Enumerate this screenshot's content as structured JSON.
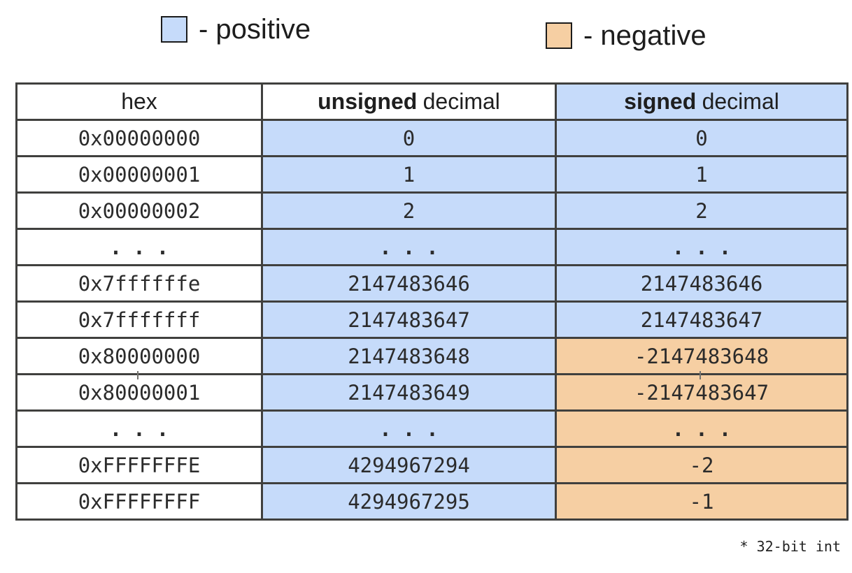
{
  "legend": {
    "positive": {
      "label": "- positive",
      "color": "#c6dbfa"
    },
    "negative": {
      "label": "- negative",
      "color": "#f6cfa3"
    }
  },
  "table": {
    "columns": {
      "hex": "hex",
      "unsigned": {
        "bold": "unsigned",
        "rest": "decimal"
      },
      "signed": {
        "bold": "signed",
        "rest": "decimal"
      }
    },
    "rows": [
      {
        "hex": "0x00000000",
        "unsigned": "0",
        "signed": "0",
        "signed_negative": false
      },
      {
        "hex": "0x00000001",
        "unsigned": "1",
        "signed": "1",
        "signed_negative": false
      },
      {
        "hex": "0x00000002",
        "unsigned": "2",
        "signed": "2",
        "signed_negative": false
      },
      {
        "hex": "...",
        "unsigned": "...",
        "signed": "...",
        "signed_negative": false
      },
      {
        "hex": "0x7ffffffe",
        "unsigned": "2147483646",
        "signed": "2147483646",
        "signed_negative": false
      },
      {
        "hex": "0x7fffffff",
        "unsigned": "2147483647",
        "signed": "2147483647",
        "signed_negative": false
      },
      {
        "hex": "0x80000000",
        "unsigned": "2147483648",
        "signed": "-2147483648",
        "signed_negative": true
      },
      {
        "hex": "0x80000001",
        "unsigned": "2147483649",
        "signed": "-2147483647",
        "signed_negative": true
      },
      {
        "hex": "...",
        "unsigned": "...",
        "signed": "...",
        "signed_negative": true
      },
      {
        "hex": "0xFFFFFFFE",
        "unsigned": "4294967294",
        "signed": "-2",
        "signed_negative": true
      },
      {
        "hex": "0xFFFFFFFF",
        "unsigned": "4294967295",
        "signed": "-1",
        "signed_negative": true
      }
    ]
  },
  "footnote": "* 32-bit int",
  "colors": {
    "positive_fill": "#c6dbfa",
    "negative_fill": "#f6cfa3",
    "border": "#40403e",
    "text": "#1f1f1f"
  }
}
